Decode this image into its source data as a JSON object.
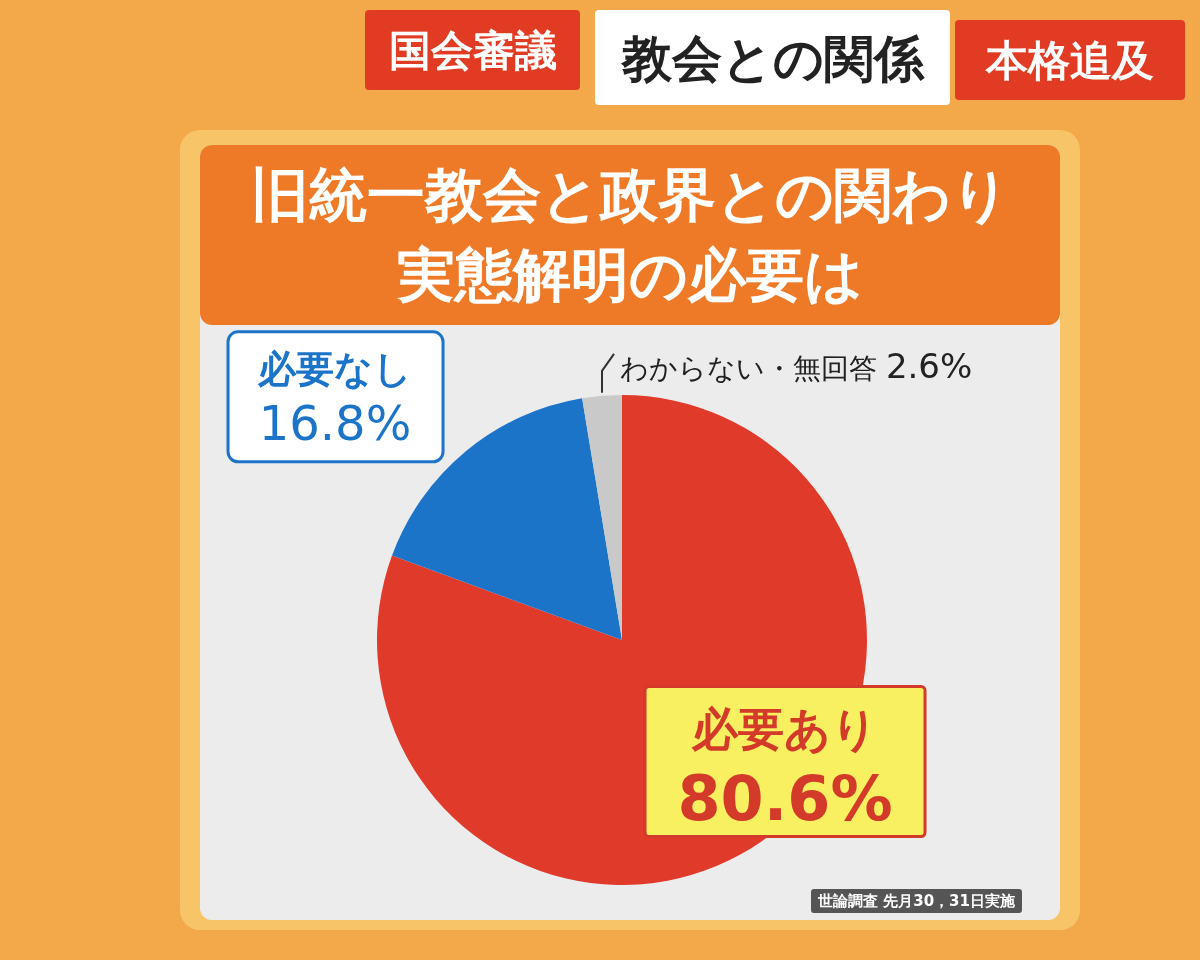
{
  "chart_data": {
    "type": "pie",
    "title": "旧統一教会と政界との関わり",
    "subtitle": "実態解明の必要は",
    "categories": [
      "必要あり",
      "必要なし",
      "わからない・無回答"
    ],
    "values": [
      80.6,
      16.8,
      2.6
    ],
    "value_labels": [
      "80.6%",
      "16.8%",
      "2.6%"
    ],
    "colors": [
      "#e03a2a",
      "#1c74c9",
      "#c9c9c9"
    ],
    "annotations": [
      "国会審議",
      "教会との関係",
      "本格追及",
      "世論調査 先月30，31日実施"
    ]
  }
}
